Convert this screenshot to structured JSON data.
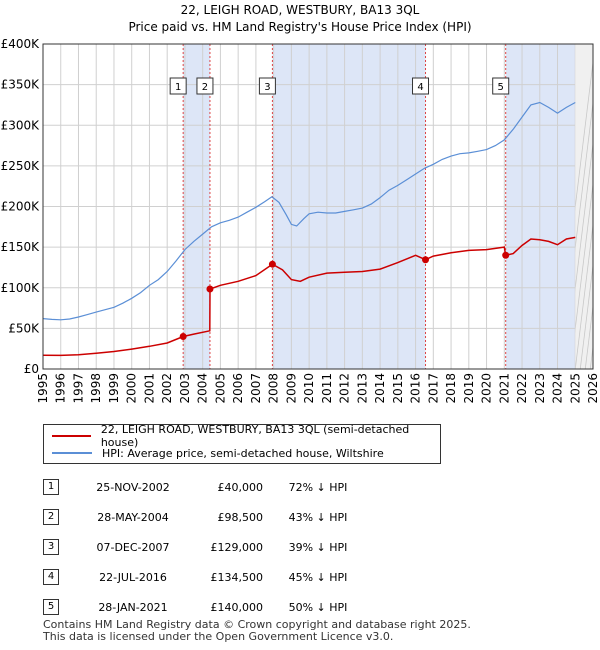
{
  "title_line1": "22, LEIGH ROAD, WESTBURY, BA13 3QL",
  "title_line2": "Price paid vs. HM Land Registry's House Price Index (HPI)",
  "legend": {
    "property": "22, LEIGH ROAD, WESTBURY, BA13 3QL (semi-detached house)",
    "hpi": "HPI: Average price, semi-detached house, Wiltshire"
  },
  "colors": {
    "property": "#cc0000",
    "hpi": "#5b8fd6",
    "band": "#dde6f7",
    "grid": "#d0d0d0",
    "marker_line": "#dd4444"
  },
  "sales": [
    {
      "num": "1",
      "date": "25-NOV-2002",
      "price": "£40,000",
      "hpi": "72% ↓ HPI"
    },
    {
      "num": "2",
      "date": "28-MAY-2004",
      "price": "£98,500",
      "hpi": "43% ↓ HPI"
    },
    {
      "num": "3",
      "date": "07-DEC-2007",
      "price": "£129,000",
      "hpi": "39% ↓ HPI"
    },
    {
      "num": "4",
      "date": "22-JUL-2016",
      "price": "£134,500",
      "hpi": "45% ↓ HPI"
    },
    {
      "num": "5",
      "date": "28-JAN-2021",
      "price": "£140,000",
      "hpi": "50% ↓ HPI"
    }
  ],
  "footer": {
    "line1": "Contains HM Land Registry data © Crown copyright and database right 2025.",
    "line2": "This data is licensed under the Open Government Licence v3.0."
  },
  "chart_data": {
    "type": "line",
    "xlim": [
      1995,
      2026
    ],
    "ylim": [
      0,
      400000
    ],
    "x_ticks": [
      "1995",
      "1996",
      "1997",
      "1998",
      "1999",
      "2000",
      "2001",
      "2002",
      "2003",
      "2004",
      "2005",
      "2006",
      "2007",
      "2008",
      "2009",
      "2010",
      "2011",
      "2012",
      "2013",
      "2014",
      "2015",
      "2016",
      "2017",
      "2018",
      "2019",
      "2020",
      "2021",
      "2022",
      "2023",
      "2024",
      "2025",
      "2026"
    ],
    "y_ticks": [
      {
        "value": 0,
        "label": "£0"
      },
      {
        "value": 50000,
        "label": "£50K"
      },
      {
        "value": 100000,
        "label": "£100K"
      },
      {
        "value": 150000,
        "label": "£150K"
      },
      {
        "value": 200000,
        "label": "£200K"
      },
      {
        "value": 250000,
        "label": "£250K"
      },
      {
        "value": 300000,
        "label": "£300K"
      },
      {
        "value": 350000,
        "label": "£350K"
      },
      {
        "value": 400000,
        "label": "£400K"
      }
    ],
    "forecast_from": 2025.0,
    "sale_markers": [
      {
        "label": "1",
        "x": 2002.9,
        "y": 40000
      },
      {
        "label": "2",
        "x": 2004.41,
        "y": 98500
      },
      {
        "label": "3",
        "x": 2007.93,
        "y": 129000
      },
      {
        "label": "4",
        "x": 2016.56,
        "y": 134500
      },
      {
        "label": "5",
        "x": 2021.08,
        "y": 140000
      }
    ],
    "series": [
      {
        "name": "HPI: Average price, semi-detached house, Wiltshire",
        "points": [
          [
            1995,
            62000
          ],
          [
            1995.5,
            61000
          ],
          [
            1996,
            60500
          ],
          [
            1996.5,
            61500
          ],
          [
            1997,
            64000
          ],
          [
            1997.5,
            67000
          ],
          [
            1998,
            70000
          ],
          [
            1998.5,
            73000
          ],
          [
            1999,
            76000
          ],
          [
            1999.5,
            81000
          ],
          [
            2000,
            87000
          ],
          [
            2000.5,
            94000
          ],
          [
            2001,
            103000
          ],
          [
            2001.5,
            110000
          ],
          [
            2002,
            120000
          ],
          [
            2002.5,
            133000
          ],
          [
            2003,
            147000
          ],
          [
            2003.5,
            157000
          ],
          [
            2004,
            166000
          ],
          [
            2004.5,
            175000
          ],
          [
            2005,
            180000
          ],
          [
            2005.5,
            183000
          ],
          [
            2006,
            187000
          ],
          [
            2006.5,
            193000
          ],
          [
            2007,
            199000
          ],
          [
            2007.5,
            206000
          ],
          [
            2007.9,
            212000
          ],
          [
            2008.3,
            205000
          ],
          [
            2008.7,
            190000
          ],
          [
            2009,
            178000
          ],
          [
            2009.3,
            176000
          ],
          [
            2009.7,
            185000
          ],
          [
            2010,
            191000
          ],
          [
            2010.5,
            193000
          ],
          [
            2011,
            192000
          ],
          [
            2011.5,
            192000
          ],
          [
            2012,
            194000
          ],
          [
            2012.5,
            196000
          ],
          [
            2013,
            198000
          ],
          [
            2013.5,
            203000
          ],
          [
            2014,
            211000
          ],
          [
            2014.5,
            220000
          ],
          [
            2015,
            226000
          ],
          [
            2015.5,
            233000
          ],
          [
            2016,
            240000
          ],
          [
            2016.5,
            247000
          ],
          [
            2017,
            252000
          ],
          [
            2017.5,
            258000
          ],
          [
            2018,
            262000
          ],
          [
            2018.5,
            265000
          ],
          [
            2019,
            266000
          ],
          [
            2019.5,
            268000
          ],
          [
            2020,
            270000
          ],
          [
            2020.5,
            275000
          ],
          [
            2021,
            282000
          ],
          [
            2021.5,
            295000
          ],
          [
            2022,
            310000
          ],
          [
            2022.5,
            325000
          ],
          [
            2023,
            328000
          ],
          [
            2023.5,
            322000
          ],
          [
            2024,
            315000
          ],
          [
            2024.5,
            322000
          ],
          [
            2025,
            328000
          ]
        ]
      },
      {
        "name": "22, LEIGH ROAD, WESTBURY, BA13 3QL (semi-detached house)",
        "points": [
          [
            1995,
            17000
          ],
          [
            1996,
            16800
          ],
          [
            1997,
            17500
          ],
          [
            1998,
            19500
          ],
          [
            1999,
            21500
          ],
          [
            2000,
            24500
          ],
          [
            2001,
            28000
          ],
          [
            2002,
            32000
          ],
          [
            2002.9,
            40000
          ],
          [
            2003.5,
            43000
          ],
          [
            2004.4,
            47000
          ],
          [
            2004.41,
            98500
          ],
          [
            2005,
            103000
          ],
          [
            2006,
            108000
          ],
          [
            2007,
            115000
          ],
          [
            2007.93,
            129000
          ],
          [
            2008.5,
            122000
          ],
          [
            2009,
            110000
          ],
          [
            2009.5,
            108000
          ],
          [
            2010,
            113000
          ],
          [
            2011,
            118000
          ],
          [
            2012,
            119000
          ],
          [
            2013,
            120000
          ],
          [
            2014,
            123000
          ],
          [
            2015,
            131000
          ],
          [
            2016,
            140000
          ],
          [
            2016.56,
            134500
          ],
          [
            2017,
            139000
          ],
          [
            2018,
            143000
          ],
          [
            2019,
            146000
          ],
          [
            2020,
            147000
          ],
          [
            2021,
            150000
          ],
          [
            2021.08,
            140000
          ],
          [
            2021.5,
            142000
          ],
          [
            2022,
            152000
          ],
          [
            2022.5,
            160000
          ],
          [
            2023,
            159000
          ],
          [
            2023.5,
            157000
          ],
          [
            2024,
            153000
          ],
          [
            2024.5,
            160000
          ],
          [
            2025,
            162000
          ]
        ]
      }
    ]
  }
}
